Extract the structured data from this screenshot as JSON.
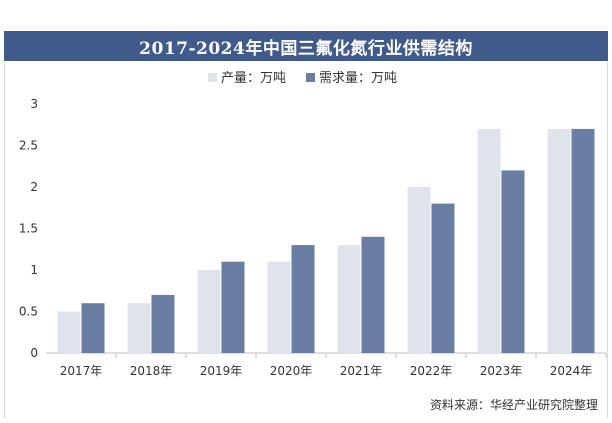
{
  "colors": {
    "title_bg": "#415a8c",
    "production": "#dfe3ec",
    "demand": "#6a7ea3",
    "axis_text": "#333333"
  },
  "chart_data": {
    "type": "bar",
    "title": "2017-2024年中国三氟化氮行业供需结构",
    "categories": [
      "2017年",
      "2018年",
      "2019年",
      "2020年",
      "2021年",
      "2022年",
      "2023年",
      "2024年"
    ],
    "series": [
      {
        "name": "产量：万吨",
        "values": [
          0.5,
          0.6,
          1.0,
          1.1,
          1.3,
          2.0,
          2.7,
          2.7
        ]
      },
      {
        "name": "需求量：万吨",
        "values": [
          0.6,
          0.7,
          1.1,
          1.3,
          1.4,
          1.8,
          2.2,
          2.7
        ]
      }
    ],
    "yticks": [
      "0",
      "0.5",
      "1",
      "1.5",
      "2",
      "2.5",
      "3"
    ],
    "ylim": [
      0,
      3
    ],
    "legend": "top-left",
    "grid": false
  },
  "source_text": "资料来源：华经产业研究院整理"
}
